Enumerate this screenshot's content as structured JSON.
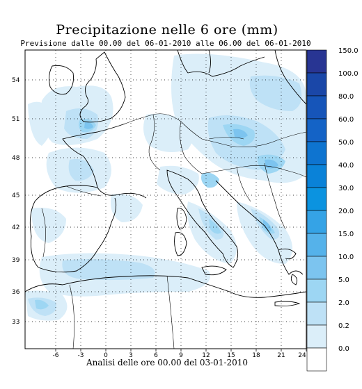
{
  "title": "Precipitazione nelle 6 ore (mm)",
  "subtitle": "Previsione dalle 00.00 del 06-01-2010 alle 06.00 del 06-01-2010",
  "footer": "Analisi delle ore 00.00 del 03-01-2010",
  "x_ticks": [
    "-6",
    "-3",
    "0",
    "3",
    "6",
    "9",
    "12",
    "15",
    "18",
    "21",
    "24"
  ],
  "y_ticks": [
    "54",
    "51",
    "48",
    "45",
    "42",
    "39",
    "36",
    "33"
  ],
  "colorbar": {
    "labels": [
      "150.0",
      "100.0",
      "80.0",
      "60.0",
      "50.0",
      "40.0",
      "30.0",
      "20.0",
      "15.0",
      "10.0",
      "5.0",
      "2.0",
      "0.2",
      "0.0"
    ],
    "colors": [
      "#283593",
      "#1a47a8",
      "#1655b9",
      "#1463c6",
      "#0e74d0",
      "#0a82d8",
      "#0b93e0",
      "#35a3e6",
      "#55b2ea",
      "#7cc4ef",
      "#9dd6f3",
      "#bee1f6",
      "#dbeef9",
      "#ffffff"
    ]
  }
}
